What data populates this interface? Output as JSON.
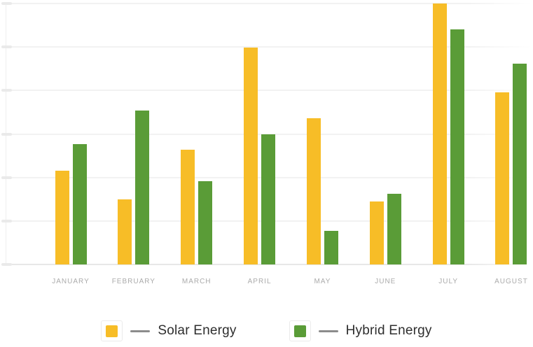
{
  "chart_data": {
    "type": "bar",
    "categories": [
      "January",
      "February",
      "March",
      "April",
      "May",
      "June",
      "July",
      "August"
    ],
    "x_tick_labels": [
      "JANUARY",
      "FEBRUARY",
      "MARCH",
      "APRIL",
      "MAY",
      "JUNE",
      "JULY",
      "AUGUST"
    ],
    "series": [
      {
        "name": "Solar Energy",
        "color": "#f7bd27",
        "values": [
          36,
          25,
          44,
          83,
          56,
          24,
          100,
          66
        ]
      },
      {
        "name": "Hybrid Energy",
        "color": "#5a9c37",
        "values": [
          46,
          59,
          32,
          50,
          13,
          27,
          90,
          77
        ]
      }
    ],
    "title": "",
    "xlabel": "",
    "ylabel": "",
    "ylim": [
      0,
      100
    ],
    "y_gridline_intervals": 6,
    "y_tick_labels_visible": false,
    "grid": true,
    "legend_position": "bottom"
  },
  "legend": {
    "items": [
      {
        "label": "Solar Energy",
        "color": "#f7bd27"
      },
      {
        "label": "Hybrid Energy",
        "color": "#5a9c37"
      }
    ]
  },
  "colors": {
    "background": "#ffffff",
    "gridline": "#f2f2f2",
    "baseline": "#e7e7e7",
    "axis_line": "#efefef",
    "tick": "#eaeaea",
    "month_label": "#ababab",
    "legend_text": "#2e2e2e",
    "legend_dash": "#8c8c8c"
  }
}
